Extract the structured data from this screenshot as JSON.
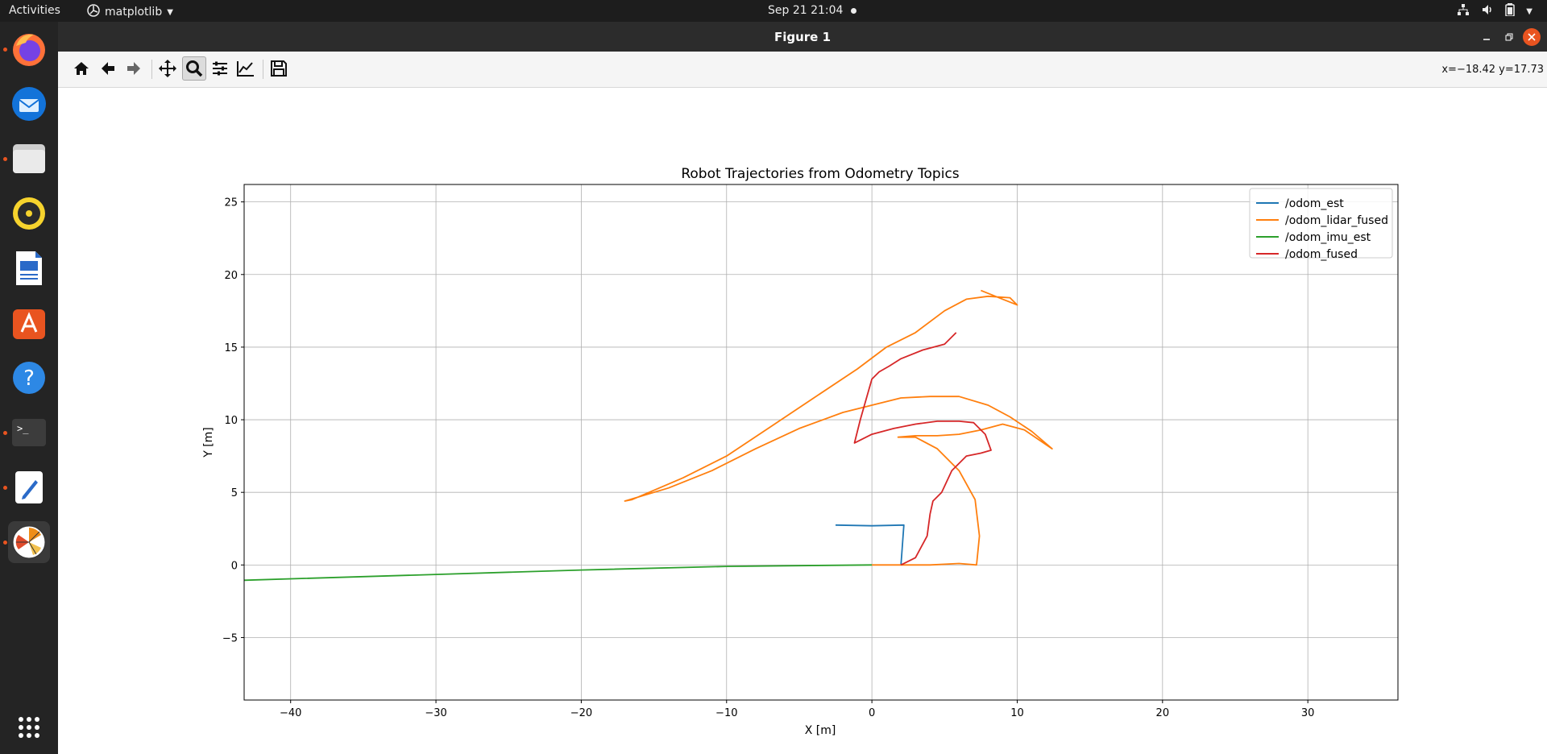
{
  "topbar": {
    "activities": "Activities",
    "app_menu": "matplotlib",
    "datetime": "Sep 21  21:04"
  },
  "window": {
    "title": "Figure 1",
    "coords_readout": "x=−18.42 y=17.73"
  },
  "toolbar": {
    "buttons": [
      {
        "name": "home-icon",
        "tooltip": "Home"
      },
      {
        "name": "back-icon",
        "tooltip": "Back"
      },
      {
        "name": "forward-icon",
        "tooltip": "Forward"
      },
      {
        "name": "pan-icon",
        "tooltip": "Pan"
      },
      {
        "name": "zoom-icon",
        "tooltip": "Zoom"
      },
      {
        "name": "subplots-icon",
        "tooltip": "Subplots"
      },
      {
        "name": "customize-icon",
        "tooltip": "Customize"
      },
      {
        "name": "save-icon",
        "tooltip": "Save"
      }
    ],
    "active": "zoom"
  },
  "dock": {
    "apps": [
      "firefox-icon",
      "thunderbird-icon",
      "files-icon",
      "rhythmbox-icon",
      "libreoffice-writer-icon",
      "app-center-icon",
      "help-icon",
      "terminal-icon",
      "text-editor-icon",
      "matplotlib-icon"
    ],
    "show_apps": "app-grid-icon"
  },
  "chart_data": {
    "type": "line",
    "title": "Robot Trajectories from Odometry Topics",
    "xlabel": "X [m]",
    "ylabel": "Y [m]",
    "xlim": [
      -43.2,
      36.2
    ],
    "ylim": [
      -9.3,
      26.2
    ],
    "xticks": [
      -40,
      -30,
      -20,
      -10,
      0,
      10,
      20,
      30
    ],
    "yticks": [
      -5,
      0,
      5,
      10,
      15,
      20,
      25
    ],
    "xtick_labels": [
      "−40",
      "−30",
      "−20",
      "−10",
      "0",
      "10",
      "20",
      "30"
    ],
    "ytick_labels": [
      "−5",
      "0",
      "5",
      "10",
      "15",
      "20",
      "25"
    ],
    "grid": true,
    "legend_position": "top-right",
    "series": [
      {
        "name": "/odom_est",
        "color": "#1f77b4",
        "x": [
          -2.5,
          0,
          2.2,
          2.0
        ],
        "y": [
          2.75,
          2.7,
          2.75,
          0.0
        ]
      },
      {
        "name": "/odom_lidar_fused",
        "color": "#ff7f0e",
        "x": [
          0.0,
          2.0,
          4.0,
          6.0,
          7.2,
          7.4,
          7.1,
          6.0,
          4.5,
          3.0,
          1.8,
          3.0,
          4.5,
          6.0,
          7.5,
          9.0,
          10.5,
          12.4,
          11.0,
          9.5,
          8.0,
          6.0,
          4.0,
          2.0,
          0.0,
          -2.0,
          -5.0,
          -8.0,
          -11.0,
          -14.0,
          -17.0,
          -16.5,
          -13.0,
          -10.0,
          -7.0,
          -4.0,
          -1.0,
          1.0,
          3.0,
          5.0,
          6.5,
          8.0,
          9.5,
          10.0,
          9.0,
          7.5
        ],
        "y": [
          0.0,
          0.0,
          0.0,
          0.1,
          0.0,
          2.0,
          4.5,
          6.5,
          8.0,
          8.8,
          8.8,
          8.9,
          8.9,
          9.0,
          9.3,
          9.7,
          9.3,
          8.0,
          9.2,
          10.2,
          11.0,
          11.6,
          11.6,
          11.5,
          11.0,
          10.5,
          9.4,
          8.0,
          6.5,
          5.3,
          4.4,
          4.5,
          6.0,
          7.5,
          9.5,
          11.5,
          13.5,
          15.0,
          16.0,
          17.5,
          18.3,
          18.5,
          18.4,
          17.9,
          18.3,
          18.9
        ]
      },
      {
        "name": "/odom_imu_est",
        "color": "#2ca02c",
        "x": [
          0.0,
          -10.0,
          -20.0,
          -30.0,
          -43.2
        ],
        "y": [
          0.0,
          -0.1,
          -0.35,
          -0.65,
          -1.05
        ]
      },
      {
        "name": "/odom_fused",
        "color": "#d62728",
        "x": [
          2.0,
          3.0,
          3.8,
          4.0,
          4.2,
          4.8,
          5.5,
          6.5,
          7.5,
          8.2,
          7.8,
          7.0,
          6.0,
          4.5,
          3.0,
          1.5,
          0.0,
          -1.2,
          -0.8,
          0.0,
          0.5,
          1.2,
          2.0,
          3.5,
          5.0,
          5.8
        ],
        "y": [
          0.0,
          0.5,
          2.0,
          3.5,
          4.4,
          5.0,
          6.5,
          7.5,
          7.7,
          7.9,
          9.0,
          9.8,
          9.9,
          9.9,
          9.7,
          9.4,
          9.0,
          8.4,
          10.0,
          12.8,
          13.3,
          13.7,
          14.2,
          14.8,
          15.2,
          16.0
        ]
      }
    ]
  }
}
